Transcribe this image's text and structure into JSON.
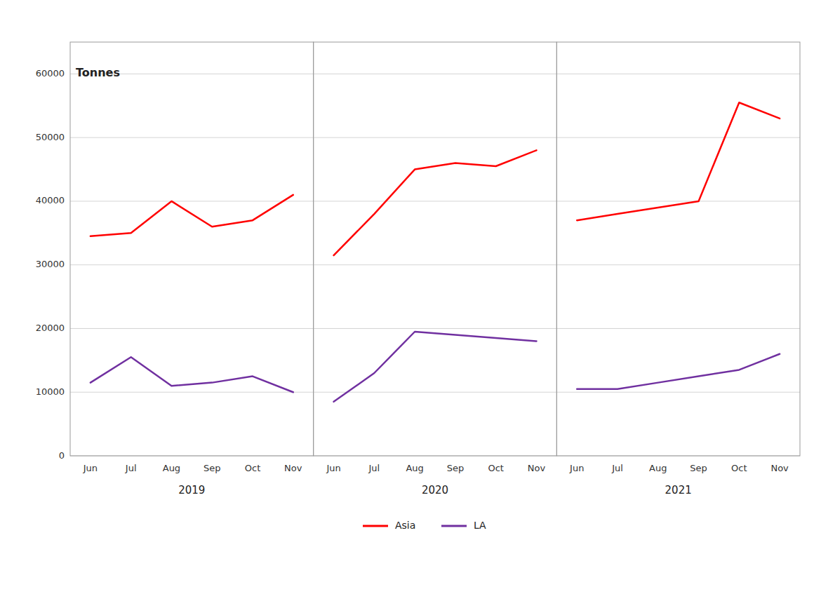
{
  "chart_data": [
    {
      "type": "line",
      "x_label": "2019",
      "y_label": "Tonnes",
      "categories": [
        "Jun",
        "Jul",
        "Aug",
        "Sep",
        "Oct",
        "Nov"
      ],
      "series": [
        {
          "name": "Asia",
          "color": "#FF0000",
          "values": [
            34500,
            35000,
            40000,
            36000,
            37000,
            41000
          ]
        },
        {
          "name": "LA",
          "color": "#7030A0",
          "values": [
            11500,
            15500,
            11000,
            11500,
            12500,
            10000
          ]
        }
      ],
      "ylim": [
        0,
        65000
      ],
      "yticks": [
        0,
        10000,
        20000,
        30000,
        40000,
        50000,
        60000
      ],
      "grid": true,
      "legend": "bottom"
    },
    {
      "type": "line",
      "x_label": "2020",
      "categories": [
        "Jun",
        "Jul",
        "Aug",
        "Sep",
        "Oct",
        "Nov"
      ],
      "series": [
        {
          "color": "#FF0000",
          "values": [
            31500,
            38000,
            45000,
            46000,
            45500,
            48000
          ]
        },
        {
          "color": "#7030A0",
          "values": [
            8500,
            13000,
            19500,
            19000,
            18500,
            18000
          ]
        }
      ],
      "ylim": [
        0,
        65000
      ],
      "yticks": [
        0,
        10000,
        20000,
        30000,
        40000,
        50000,
        60000
      ],
      "grid": true,
      "tick_labels": "x"
    },
    {
      "type": "line",
      "x_label": "2021",
      "categories": [
        "Jun",
        "Jul",
        "Aug",
        "Sep",
        "Oct",
        "Nov"
      ],
      "series": [
        {
          "color": "#FF0000",
          "values": [
            37000,
            38000,
            39000,
            40000,
            55500,
            53000
          ]
        },
        {
          "color": "#7030A0",
          "values": [
            10500,
            10500,
            11500,
            12500,
            13500,
            16000
          ]
        }
      ],
      "ylim": [
        0,
        65000
      ],
      "yticks": [
        0,
        10000,
        20000,
        30000,
        40000,
        50000,
        60000
      ],
      "grid": true,
      "tick_labels": "x"
    }
  ]
}
